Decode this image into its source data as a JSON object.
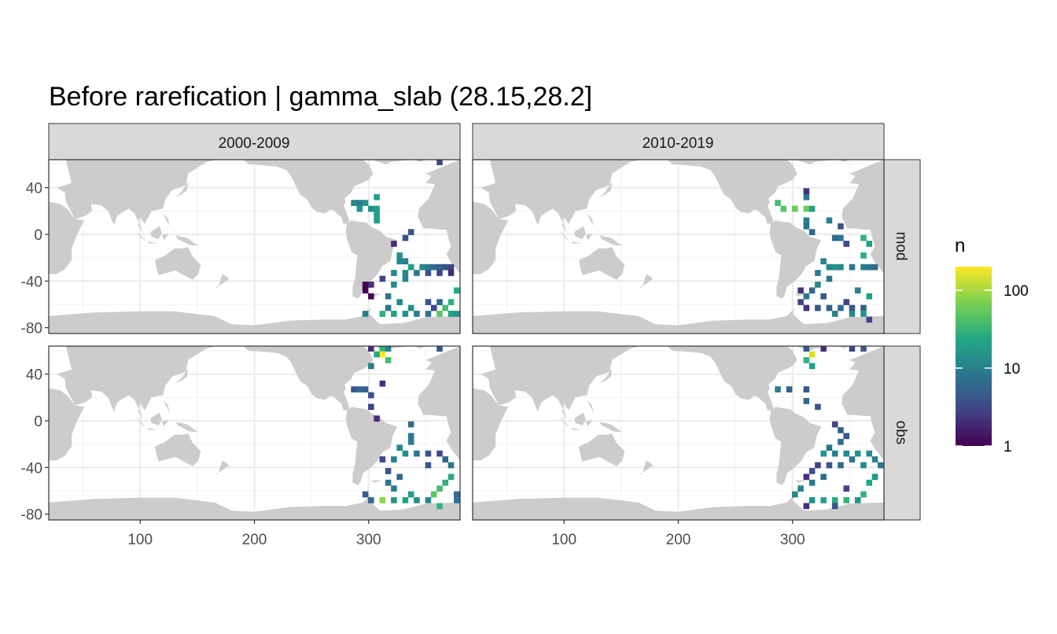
{
  "chart_data": {
    "type": "heatmap",
    "title": "Before rarefication | gamma_slab (28.15,28.2]",
    "xlabel": "",
    "ylabel": "",
    "facet_columns": [
      "2000-2009",
      "2010-2019"
    ],
    "facet_rows": [
      "mod",
      "obs"
    ],
    "xlim": [
      20,
      380
    ],
    "ylim": [
      -85,
      64
    ],
    "x_ticks": [
      100,
      200,
      300
    ],
    "y_ticks": [
      40,
      0,
      -40,
      -80
    ],
    "x_tick_labels": [
      "100",
      "200",
      "300"
    ],
    "y_tick_labels": [
      "40",
      "0",
      "-40",
      "-80"
    ],
    "cell_size_deg": 5,
    "legend": {
      "title": "n",
      "scale": "log10",
      "range": [
        1,
        200
      ],
      "breaks": [
        1,
        10,
        100
      ],
      "break_labels": [
        "1",
        "10",
        "100"
      ],
      "colormap": "viridis",
      "position": "right"
    },
    "grid": true,
    "background_land_color": "#cccccc",
    "panels": [
      {
        "column": "2000-2009",
        "row": "mod",
        "cells": [
          [
            362,
            62,
            3
          ],
          [
            287,
            27,
            12
          ],
          [
            292,
            27,
            10
          ],
          [
            297,
            27,
            15
          ],
          [
            307,
            32,
            20
          ],
          [
            307,
            22,
            20
          ],
          [
            307,
            17,
            20
          ],
          [
            307,
            12,
            20
          ],
          [
            292,
            22,
            15
          ],
          [
            302,
            22,
            15
          ],
          [
            337,
            2,
            4
          ],
          [
            332,
            -3,
            4
          ],
          [
            322,
            -8,
            2
          ],
          [
            327,
            -18,
            15
          ],
          [
            327,
            -23,
            12
          ],
          [
            332,
            -23,
            10
          ],
          [
            337,
            -28,
            20
          ],
          [
            347,
            -28,
            12
          ],
          [
            352,
            -28,
            8
          ],
          [
            357,
            -28,
            6
          ],
          [
            362,
            -28,
            5
          ],
          [
            367,
            -28,
            4
          ],
          [
            372,
            -28,
            3
          ],
          [
            322,
            -33,
            12
          ],
          [
            332,
            -33,
            12
          ],
          [
            342,
            -33,
            8
          ],
          [
            352,
            -33,
            4
          ],
          [
            362,
            -33,
            3
          ],
          [
            372,
            -33,
            2
          ],
          [
            312,
            -38,
            3
          ],
          [
            302,
            -43,
            2
          ],
          [
            297,
            -48,
            1
          ],
          [
            302,
            -53,
            1
          ],
          [
            297,
            -43,
            1
          ],
          [
            322,
            -43,
            12
          ],
          [
            332,
            -38,
            10
          ],
          [
            317,
            -53,
            8
          ],
          [
            327,
            -58,
            12
          ],
          [
            337,
            -63,
            15
          ],
          [
            317,
            -63,
            8
          ],
          [
            312,
            -68,
            30
          ],
          [
            297,
            -68,
            10
          ],
          [
            322,
            -68,
            20
          ],
          [
            332,
            -68,
            15
          ],
          [
            342,
            -68,
            10
          ],
          [
            352,
            -68,
            8
          ],
          [
            362,
            -68,
            50
          ],
          [
            367,
            -63,
            40
          ],
          [
            372,
            -58,
            30
          ],
          [
            377,
            -48,
            25
          ],
          [
            357,
            -63,
            3
          ],
          [
            352,
            -58,
            4
          ],
          [
            362,
            -58,
            6
          ],
          [
            372,
            -68,
            20
          ],
          [
            377,
            -68,
            15
          ]
        ]
      },
      {
        "column": "2010-2019",
        "row": "mod",
        "cells": [
          [
            312,
            37,
            2
          ],
          [
            287,
            27,
            40
          ],
          [
            292,
            22,
            50
          ],
          [
            302,
            22,
            60
          ],
          [
            312,
            22,
            60
          ],
          [
            317,
            22,
            20
          ],
          [
            312,
            32,
            8
          ],
          [
            312,
            12,
            10
          ],
          [
            312,
            7,
            8
          ],
          [
            317,
            2,
            6
          ],
          [
            332,
            12,
            10
          ],
          [
            342,
            7,
            4
          ],
          [
            337,
            -3,
            6
          ],
          [
            342,
            -3,
            8
          ],
          [
            347,
            -8,
            3
          ],
          [
            362,
            -3,
            30
          ],
          [
            367,
            -8,
            20
          ],
          [
            362,
            -18,
            25
          ],
          [
            327,
            -23,
            10
          ],
          [
            332,
            -28,
            12
          ],
          [
            337,
            -28,
            15
          ],
          [
            342,
            -28,
            12
          ],
          [
            352,
            -28,
            8
          ],
          [
            362,
            -28,
            10
          ],
          [
            367,
            -28,
            8
          ],
          [
            372,
            -28,
            6
          ],
          [
            322,
            -33,
            10
          ],
          [
            332,
            -38,
            8
          ],
          [
            322,
            -43,
            12
          ],
          [
            317,
            -48,
            6
          ],
          [
            312,
            -53,
            8
          ],
          [
            307,
            -58,
            3
          ],
          [
            312,
            -63,
            2
          ],
          [
            322,
            -63,
            4
          ],
          [
            332,
            -63,
            5
          ],
          [
            342,
            -63,
            6
          ],
          [
            352,
            -63,
            4
          ],
          [
            362,
            -63,
            5
          ],
          [
            367,
            -53,
            20
          ],
          [
            357,
            -48,
            10
          ],
          [
            347,
            -58,
            3
          ],
          [
            337,
            -68,
            10
          ],
          [
            352,
            -68,
            12
          ],
          [
            362,
            -68,
            15
          ],
          [
            367,
            -73,
            3
          ],
          [
            307,
            -48,
            2
          ],
          [
            327,
            -53,
            4
          ]
        ]
      },
      {
        "column": "2000-2009",
        "row": "obs",
        "cells": [
          [
            302,
            62,
            2
          ],
          [
            312,
            62,
            30
          ],
          [
            317,
            62,
            10
          ],
          [
            362,
            62,
            4
          ],
          [
            312,
            57,
            200
          ],
          [
            307,
            57,
            25
          ],
          [
            317,
            52,
            40
          ],
          [
            302,
            47,
            10
          ],
          [
            297,
            27,
            5
          ],
          [
            292,
            27,
            6
          ],
          [
            287,
            27,
            4
          ],
          [
            302,
            22,
            4
          ],
          [
            302,
            12,
            3
          ],
          [
            307,
            2,
            2
          ],
          [
            312,
            32,
            2
          ],
          [
            337,
            -3,
            6
          ],
          [
            337,
            -13,
            8
          ],
          [
            337,
            -18,
            10
          ],
          [
            327,
            -23,
            12
          ],
          [
            332,
            -28,
            15
          ],
          [
            342,
            -28,
            8
          ],
          [
            352,
            -28,
            4
          ],
          [
            362,
            -28,
            3
          ],
          [
            322,
            -33,
            10
          ],
          [
            312,
            -33,
            3
          ],
          [
            317,
            -43,
            4
          ],
          [
            327,
            -48,
            6
          ],
          [
            317,
            -53,
            8
          ],
          [
            322,
            -58,
            10
          ],
          [
            337,
            -63,
            20
          ],
          [
            322,
            -68,
            15
          ],
          [
            312,
            -68,
            80
          ],
          [
            297,
            -63,
            5
          ],
          [
            302,
            -68,
            6
          ],
          [
            332,
            -68,
            20
          ],
          [
            342,
            -68,
            15
          ],
          [
            352,
            -68,
            12
          ],
          [
            357,
            -63,
            50
          ],
          [
            362,
            -58,
            40
          ],
          [
            367,
            -53,
            30
          ],
          [
            372,
            -48,
            25
          ],
          [
            367,
            -33,
            5
          ],
          [
            372,
            -38,
            8
          ],
          [
            362,
            -73,
            30
          ],
          [
            377,
            -63,
            6
          ],
          [
            377,
            -68,
            8
          ],
          [
            352,
            -38,
            4
          ]
        ]
      },
      {
        "column": "2010-2019",
        "row": "obs",
        "cells": [
          [
            312,
            62,
            4
          ],
          [
            327,
            62,
            2
          ],
          [
            352,
            62,
            3
          ],
          [
            362,
            62,
            4
          ],
          [
            317,
            57,
            150
          ],
          [
            312,
            52,
            30
          ],
          [
            317,
            47,
            20
          ],
          [
            287,
            27,
            10
          ],
          [
            297,
            27,
            5
          ],
          [
            312,
            27,
            4
          ],
          [
            312,
            17,
            6
          ],
          [
            322,
            12,
            4
          ],
          [
            337,
            -3,
            3
          ],
          [
            342,
            -8,
            5
          ],
          [
            347,
            -13,
            4
          ],
          [
            342,
            -18,
            6
          ],
          [
            332,
            -23,
            8
          ],
          [
            327,
            -28,
            15
          ],
          [
            337,
            -28,
            10
          ],
          [
            347,
            -28,
            12
          ],
          [
            357,
            -28,
            15
          ],
          [
            367,
            -28,
            12
          ],
          [
            372,
            -33,
            10
          ],
          [
            377,
            -38,
            8
          ],
          [
            362,
            -38,
            12
          ],
          [
            352,
            -33,
            8
          ],
          [
            342,
            -38,
            6
          ],
          [
            332,
            -38,
            4
          ],
          [
            322,
            -38,
            3
          ],
          [
            317,
            -43,
            4
          ],
          [
            312,
            -48,
            2
          ],
          [
            327,
            -48,
            6
          ],
          [
            317,
            -53,
            8
          ],
          [
            307,
            -58,
            10
          ],
          [
            302,
            -63,
            12
          ],
          [
            317,
            -68,
            15
          ],
          [
            327,
            -68,
            20
          ],
          [
            337,
            -68,
            25
          ],
          [
            347,
            -68,
            30
          ],
          [
            357,
            -68,
            15
          ],
          [
            362,
            -63,
            30
          ],
          [
            367,
            -53,
            20
          ],
          [
            372,
            -48,
            15
          ],
          [
            347,
            -58,
            3
          ],
          [
            337,
            -73,
            4
          ],
          [
            312,
            -73,
            2
          ]
        ]
      }
    ]
  }
}
